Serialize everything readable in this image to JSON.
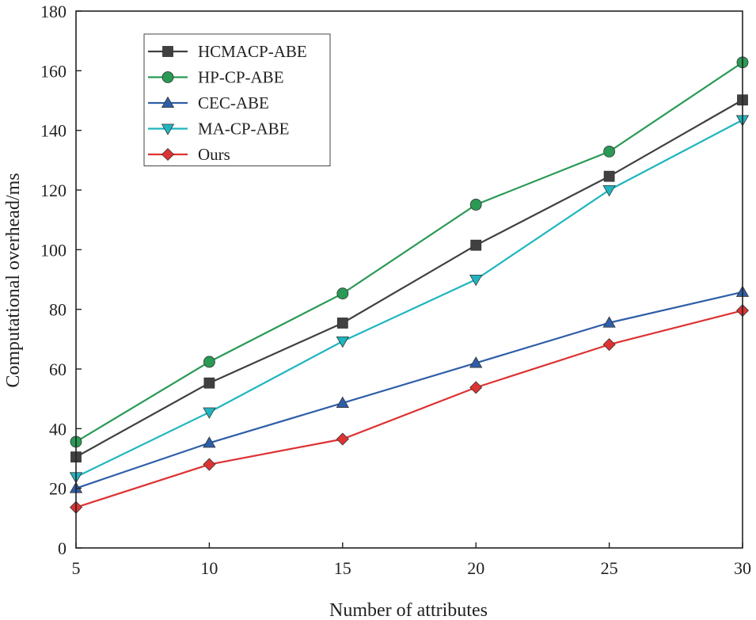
{
  "chart_data": {
    "type": "line",
    "title": "",
    "xlabel": "Number of attributes",
    "ylabel": "Computational overhead/ms",
    "xlim": [
      5,
      30
    ],
    "ylim": [
      0,
      180
    ],
    "x_ticks": [
      5,
      10,
      15,
      20,
      25,
      30
    ],
    "y_ticks": [
      0,
      20,
      40,
      60,
      80,
      100,
      120,
      140,
      160,
      180
    ],
    "x": [
      5,
      10,
      15,
      20,
      25,
      30
    ],
    "legend_position": "top-left",
    "series": [
      {
        "name": "HCMACP-ABE",
        "color": "#404040",
        "marker": "square",
        "values": [
          30.5,
          55.3,
          75.4,
          101.5,
          124.6,
          150.2
        ]
      },
      {
        "name": "HP-CP-ABE",
        "color": "#2a9a55",
        "marker": "circle",
        "values": [
          35.6,
          62.4,
          85.3,
          115.1,
          132.9,
          162.8
        ]
      },
      {
        "name": "CEC-ABE",
        "color": "#2f5ea8",
        "marker": "triangle-up",
        "values": [
          20.0,
          35.2,
          48.6,
          62.0,
          75.5,
          85.8
        ]
      },
      {
        "name": "MA-CP-ABE",
        "color": "#1fb5c0",
        "marker": "triangle-down",
        "values": [
          23.8,
          45.5,
          69.3,
          90.0,
          120.0,
          143.5
        ]
      },
      {
        "name": "Ours",
        "color": "#dd3333",
        "marker": "diamond",
        "values": [
          13.6,
          28.0,
          36.5,
          53.8,
          68.2,
          79.6
        ]
      }
    ]
  }
}
